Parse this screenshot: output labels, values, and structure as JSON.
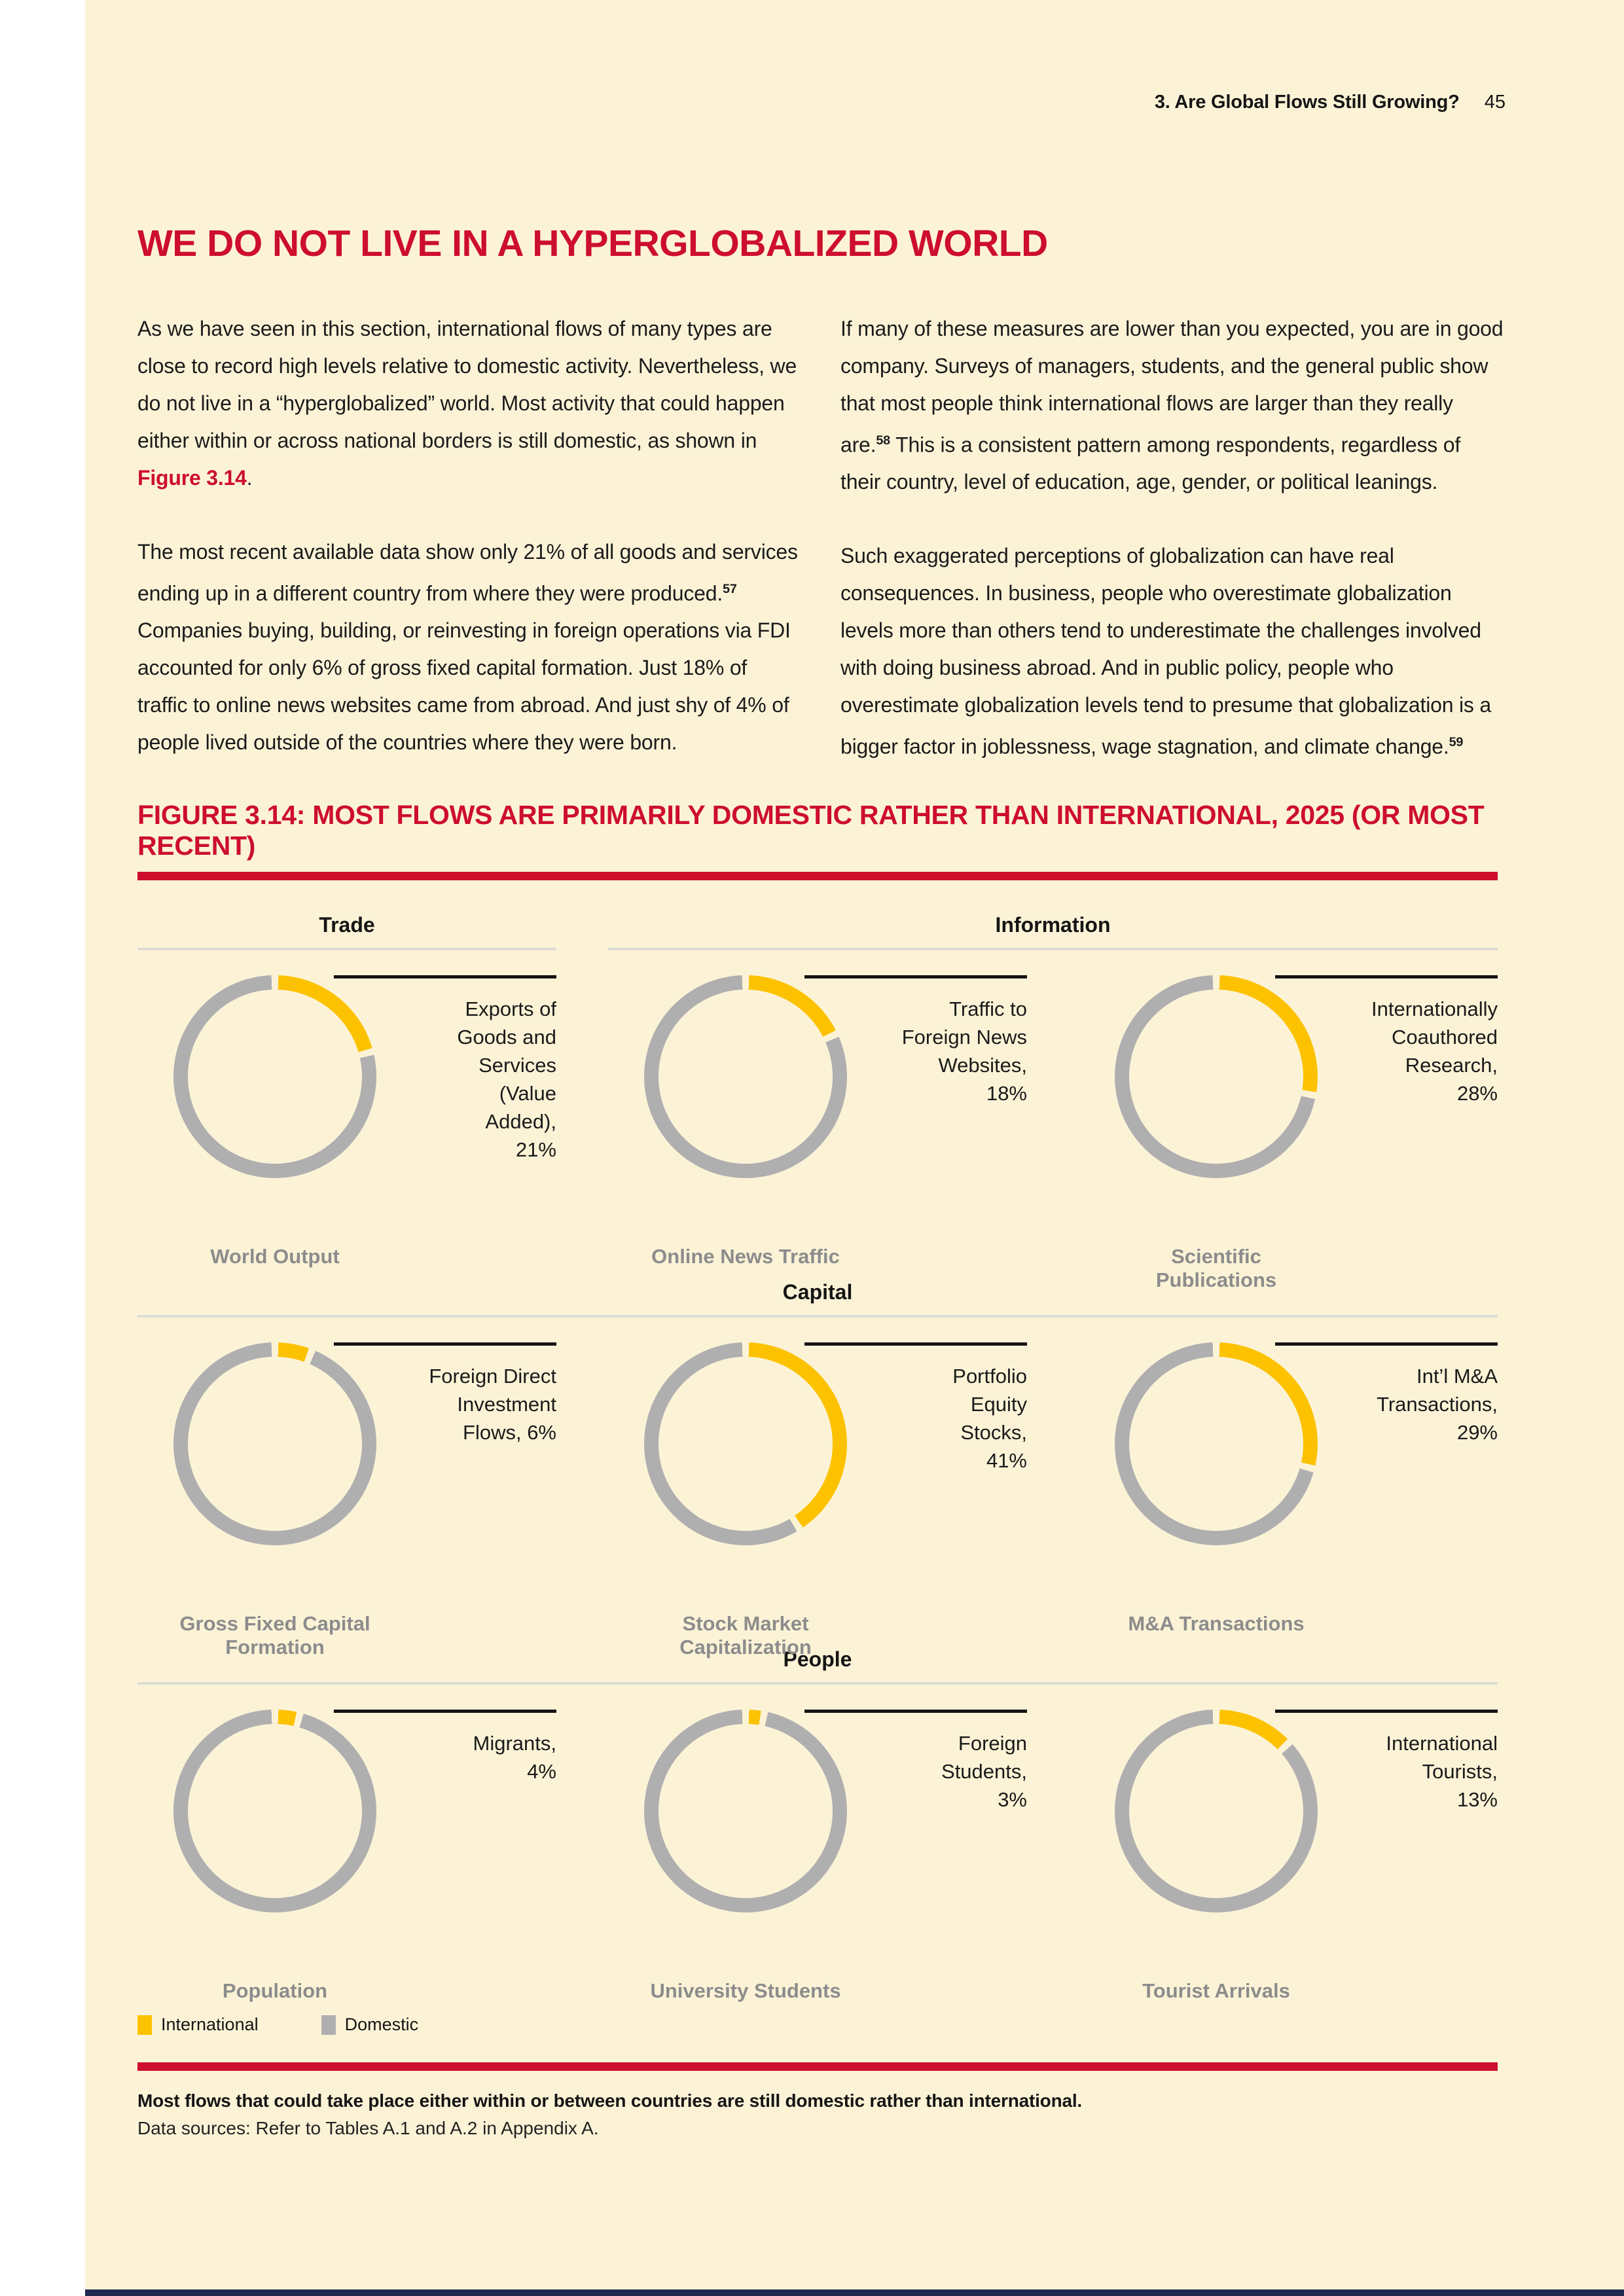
{
  "page": {
    "header": {
      "section": "3. Are Global Flows Still Growing?",
      "page_number": "45"
    },
    "title": "WE DO NOT LIVE IN A HYPERGLOBALIZED WORLD",
    "body": {
      "col1_p1_before": "As we have seen in this section, international flows of many types are close to record high levels relative to domestic activity. Nevertheless, we do not live in a “hyperglobalized” world. Most activity that could happen either within or across national borders is still domestic, as shown in ",
      "col1_p1_figref": "Figure 3.14",
      "col1_p1_after": ".",
      "col1_p2_main": "The most recent available data show only 21% of all goods and services ending up in a different country from where they were produced.",
      "col1_p2_fn": "57",
      "col1_p2_rest": " Companies buying, building, or reinvesting in foreign operations via FDI accounted for only 6% of gross fixed capital formation. Just 18% of traffic to online news websites came from abroad. And just shy of 4% of people lived outside of the countries where they were born.",
      "col2_p1_main": "If many of these measures are lower than you expected, you are in good company. Surveys of managers, students, and the general public show that most people think international flows are larger than they really are.",
      "col2_p1_fn": "58",
      "col2_p1_rest": " This is a consistent pattern among respondents, regardless of their country, level of education, age, gender, or political leanings.",
      "col2_p2_main": "Such exaggerated perceptions of globalization can have real consequences. In business, people who overestimate globalization levels more than others tend to underestimate the challenges involved with doing business abroad. And in public policy, people who overestimate globalization levels tend to presume that globalization is a bigger factor in joblessness, wage stagnation, and climate change.",
      "col2_p2_fn": "59",
      "col2_p2_rest": ""
    },
    "figure_title": "FIGURE 3.14: MOST FLOWS ARE PRIMARILY DOMESTIC RATHER THAN INTERNATIONAL, 2025 (OR MOST RECENT)",
    "legend": {
      "international": "International",
      "domestic": "Domestic"
    },
    "caption_bold": "Most flows that could take place either within or between countries are still domestic rather than international.",
    "caption_source": "Data sources: Refer to Tables A.1 and A.2 in Appendix A."
  },
  "colors": {
    "background": "#FCF3D7",
    "accent_red": "#CD0E2C",
    "international": "#FCC200",
    "domestic": "#AFAFB0",
    "label_gray": "#8C8C8C",
    "navy": "#20294F"
  },
  "chart_data": {
    "type": "pie",
    "subtype": "donut",
    "unit": "%",
    "title": "FIGURE 3.14: MOST FLOWS ARE PRIMARILY DOMESTIC RATHER THAN INTERNATIONAL, 2025 (OR MOST RECENT)",
    "legend": [
      "International",
      "Domestic"
    ],
    "legend_position": "bottom-left",
    "series_colors": {
      "International": "#FCC200",
      "Domestic": "#AFAFB0"
    },
    "rows": [
      {
        "section_headers": [
          {
            "label": "Trade",
            "col_start": 1,
            "col_end": 2
          },
          {
            "label": "Information",
            "col_start": 2,
            "col_end": 4
          }
        ],
        "charts": [
          {
            "label": "Exports of Goods and Services (Value Added), 21%",
            "label_lines": [
              "Exports of",
              "Goods and",
              "Services",
              "(Value",
              "Added),",
              "21%"
            ],
            "international_pct": 21,
            "domestic_pct": 79,
            "denominator": "World Output"
          },
          {
            "label": "Traffic to Foreign News Websites, 18%",
            "label_lines": [
              "Traffic to",
              "Foreign News",
              "Websites,",
              "18%"
            ],
            "international_pct": 18,
            "domestic_pct": 82,
            "denominator": "Online News Traffic"
          },
          {
            "label": "Internationally Coauthored Research, 28%",
            "label_lines": [
              "Internationally",
              "Coauthored",
              "Research,",
              "28%"
            ],
            "international_pct": 28,
            "domestic_pct": 72,
            "denominator": "Scientific Publications"
          }
        ]
      },
      {
        "section_headers": [
          {
            "label": "Capital",
            "col_start": 1,
            "col_end": 4
          }
        ],
        "charts": [
          {
            "label": "Foreign Direct Investment Flows, 6%",
            "label_lines": [
              "Foreign Direct",
              "Investment",
              "Flows, 6%"
            ],
            "international_pct": 6,
            "domestic_pct": 94,
            "denominator": "Gross Fixed Capital Formation"
          },
          {
            "label": "Portfolio Equity Stocks, 41%",
            "label_lines": [
              "Portfolio",
              "Equity",
              "Stocks,",
              "41%"
            ],
            "international_pct": 41,
            "domestic_pct": 59,
            "denominator": "Stock Market Capitalization"
          },
          {
            "label": "Int’l M&A Transactions, 29%",
            "label_lines": [
              "Int’l M&A",
              "Transactions,",
              "29%"
            ],
            "international_pct": 29,
            "domestic_pct": 71,
            "denominator": "M&A Transactions"
          }
        ]
      },
      {
        "section_headers": [
          {
            "label": "People",
            "col_start": 1,
            "col_end": 4
          }
        ],
        "charts": [
          {
            "label": "Migrants, 4%",
            "label_lines": [
              "Migrants,",
              "4%"
            ],
            "international_pct": 4,
            "domestic_pct": 96,
            "denominator": "Population"
          },
          {
            "label": "Foreign Students, 3%",
            "label_lines": [
              "Foreign",
              "Students,",
              "3%"
            ],
            "international_pct": 3,
            "domestic_pct": 97,
            "denominator": "University Students"
          },
          {
            "label": "International Tourists, 13%",
            "label_lines": [
              "International",
              "Tourists,",
              "13%"
            ],
            "international_pct": 13,
            "domestic_pct": 87,
            "denominator": "Tourist Arrivals"
          }
        ]
      }
    ]
  }
}
